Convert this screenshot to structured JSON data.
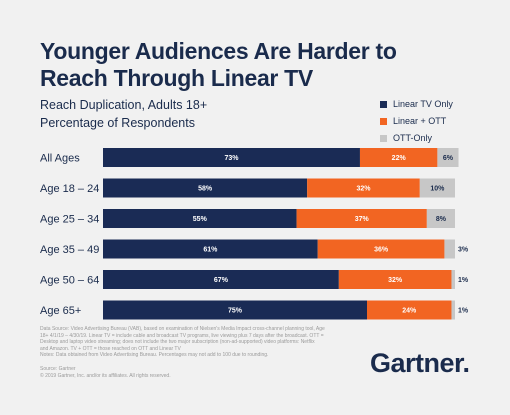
{
  "header": {
    "title": "Younger Audiences Are Harder to Reach Through Linear TV",
    "subtitle_line1": "Reach Duplication, Adults 18+",
    "subtitle_line2": "Percentage of Respondents"
  },
  "colors": {
    "linear_tv_only": "#1a2b55",
    "linear_ott": "#f26522",
    "ott_only": "#c7c7c7",
    "text_dark": "#1a2b4c"
  },
  "chart_data": {
    "type": "bar",
    "orientation": "horizontal",
    "stacked": true,
    "categories": [
      "All Ages",
      "Age 18 – 24",
      "Age 25 – 34",
      "Age 35 – 49",
      "Age 50 – 64",
      "Age 65+"
    ],
    "series": [
      {
        "name": "Linear TV Only",
        "values": [
          73,
          58,
          55,
          61,
          67,
          75
        ],
        "labels": [
          "73%",
          "58%",
          "55%",
          "61%",
          "67%",
          "75%"
        ]
      },
      {
        "name": "Linear + OTT",
        "values": [
          22,
          32,
          37,
          36,
          32,
          24
        ],
        "labels": [
          "22%",
          "32%",
          "37%",
          "36%",
          "32%",
          "24%"
        ]
      },
      {
        "name": "OTT-Only",
        "values": [
          6,
          10,
          8,
          3,
          1,
          1
        ],
        "labels": [
          "6%",
          "10%",
          "8%",
          "3%",
          "1%",
          "1%"
        ]
      }
    ],
    "xlim": [
      0,
      100
    ],
    "legend_position": "top-right"
  },
  "notes": {
    "line1": "Data Source: Video Advertising Bureau (VAB), based on examination of Nielsen's Media Impact cross-channel planning tool, Age",
    "line2": "18+ 4/1/19 – 4/30/19. Linear TV = include cable and broadcast TV programs, live viewing plus 7 days after the broadcast. OTT =",
    "line3": "Desktop and laptop video streaming; does not include the two major subscription (non-ad-supported) video platforms: Netflix",
    "line4": "and Amazon. TV + OTT = those reached on OTT and Linear TV",
    "line5": "Notes: Data obtained from Video Advertising Bureau. Percentages may not add to 100 due to rounding."
  },
  "source": {
    "line1": "Source: Gartner",
    "line2": "© 2019 Gartner, Inc. and/or its affiliates. All rights reserved."
  },
  "brand": {
    "logo_text": "Gartner",
    "logo_dot": "."
  }
}
